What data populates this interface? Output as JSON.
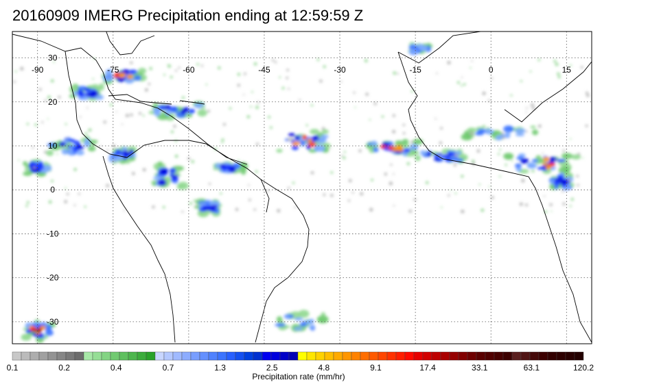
{
  "title": "20160909 IMERG Precipitation ending at 12:59:59 Z",
  "map": {
    "projection": "equirectangular",
    "lon_range": [
      -95,
      20
    ],
    "lat_range": [
      -35,
      36
    ],
    "grid": true,
    "lon_ticks": [
      {
        "value": -90,
        "label": "-90"
      },
      {
        "value": -75,
        "label": "-75"
      },
      {
        "value": -60,
        "label": "-60"
      },
      {
        "value": -45,
        "label": "-45"
      },
      {
        "value": -30,
        "label": "-30"
      },
      {
        "value": -15,
        "label": "-15"
      },
      {
        "value": 0,
        "label": "0"
      },
      {
        "value": 15,
        "label": "15"
      }
    ],
    "lat_ticks": [
      {
        "value": 30,
        "label": "30"
      },
      {
        "value": 20,
        "label": "20"
      },
      {
        "value": 10,
        "label": "10"
      },
      {
        "value": 0,
        "label": "0"
      },
      {
        "value": -10,
        "label": "-10"
      },
      {
        "value": -20,
        "label": "-20"
      },
      {
        "value": -30,
        "label": "-30"
      }
    ],
    "precip_regions": [
      {
        "name": "Atlantic ITCZ west",
        "lon": -37,
        "lat": 11,
        "w": 10,
        "h": 5,
        "level": 3
      },
      {
        "name": "Atlantic ITCZ central",
        "lon": -20,
        "lat": 9.5,
        "w": 12,
        "h": 3,
        "level": 3
      },
      {
        "name": "ITCZ east",
        "lon": -10,
        "lat": 7.5,
        "w": 10,
        "h": 2.5,
        "level": 2
      },
      {
        "name": "West Africa coast",
        "lon": 10,
        "lat": 6,
        "w": 14,
        "h": 5,
        "level": 3
      },
      {
        "name": "Sahel",
        "lon": 2,
        "lat": 13,
        "w": 14,
        "h": 3,
        "level": 1
      },
      {
        "name": "Caribbean",
        "lon": -62,
        "lat": 18,
        "w": 12,
        "h": 3,
        "level": 2
      },
      {
        "name": "Bahamas",
        "lon": -73,
        "lat": 26,
        "w": 8,
        "h": 3,
        "level": 3
      },
      {
        "name": "Cuba",
        "lon": -80,
        "lat": 22,
        "w": 6,
        "h": 3,
        "level": 2
      },
      {
        "name": "Central America",
        "lon": -84,
        "lat": 10,
        "w": 10,
        "h": 4,
        "level": 2
      },
      {
        "name": "Colombia",
        "lon": -73,
        "lat": 8,
        "w": 5,
        "h": 3,
        "level": 2
      },
      {
        "name": "Venezuela",
        "lon": -64,
        "lat": 3,
        "w": 6,
        "h": 6,
        "level": 2
      },
      {
        "name": "Guiana coast",
        "lon": -52,
        "lat": 5,
        "w": 6,
        "h": 2,
        "level": 2
      },
      {
        "name": "Amazon",
        "lon": -56,
        "lat": -4,
        "w": 4,
        "h": 3,
        "level": 2
      },
      {
        "name": "Pacific off Ecuador",
        "lon": -90,
        "lat": 5,
        "w": 5,
        "h": 3,
        "level": 2
      },
      {
        "name": "SE Pacific south",
        "lon": -90,
        "lat": -32,
        "w": 6,
        "h": 4,
        "level": 4
      },
      {
        "name": "South Atlantic frontal",
        "lon": -38,
        "lat": -30,
        "w": 10,
        "h": 4,
        "level": 1
      },
      {
        "name": "East Atlantic NW Africa",
        "lon": -14,
        "lat": 32,
        "w": 4,
        "h": 2,
        "level": 1
      },
      {
        "name": "Congo",
        "lon": 14,
        "lat": 2,
        "w": 4,
        "h": 4,
        "level": 2
      }
    ]
  },
  "colorbar": {
    "label": "Precipitation rate (mm/hr)",
    "tick_labels": [
      "0.1",
      "0.2",
      "0.4",
      "0.7",
      "1.3",
      "2.5",
      "4.8",
      "9.1",
      "17.4",
      "33.1",
      "63.1",
      "120.2"
    ],
    "colors": [
      "#c8c8c8",
      "#bbbbbb",
      "#adadad",
      "#a0a0a0",
      "#939393",
      "#868686",
      "#797979",
      "#6c6c6c",
      "#a7e8a7",
      "#95de95",
      "#83d483",
      "#71ca71",
      "#5fc05f",
      "#4db64d",
      "#3bac3b",
      "#29a229",
      "#c8d6ff",
      "#b4c8ff",
      "#a0baff",
      "#8cacff",
      "#789eff",
      "#6490ff",
      "#5082ff",
      "#3c74ff",
      "#2860ff",
      "#1450f0",
      "#0040e0",
      "#0030d0",
      "#0000f0",
      "#0000dd",
      "#0000c8",
      "#0000b4",
      "#ffff00",
      "#ffe600",
      "#ffd200",
      "#ffbe00",
      "#ffaa00",
      "#ff9600",
      "#ff8200",
      "#ff6e00",
      "#ff5a00",
      "#ff4600",
      "#ff3200",
      "#ff1e00",
      "#ff0a00",
      "#e60000",
      "#d20000",
      "#be0000",
      "#aa0000",
      "#960000",
      "#820000",
      "#6e0000",
      "#5a0000",
      "#500000",
      "#460000",
      "#3c0000",
      "#5a1e1e",
      "#501414",
      "#460a0a",
      "#3c0000",
      "#320000",
      "#2d0000",
      "#280000",
      "#230000"
    ]
  }
}
